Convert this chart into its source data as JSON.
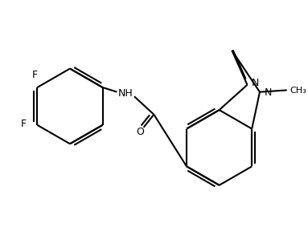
{
  "bg_color": "#ffffff",
  "bond_color": "#000000",
  "bond_lw": 1.5,
  "font_size": 9,
  "figsize": [
    3.83,
    2.93
  ],
  "dpi": 100,
  "atoms": {
    "F1_label": "F",
    "F2_label": "F",
    "NH_label": "NH",
    "O_label": "O",
    "N1_label": "N",
    "N2_label": "N",
    "CH3_label": "CH₃"
  }
}
